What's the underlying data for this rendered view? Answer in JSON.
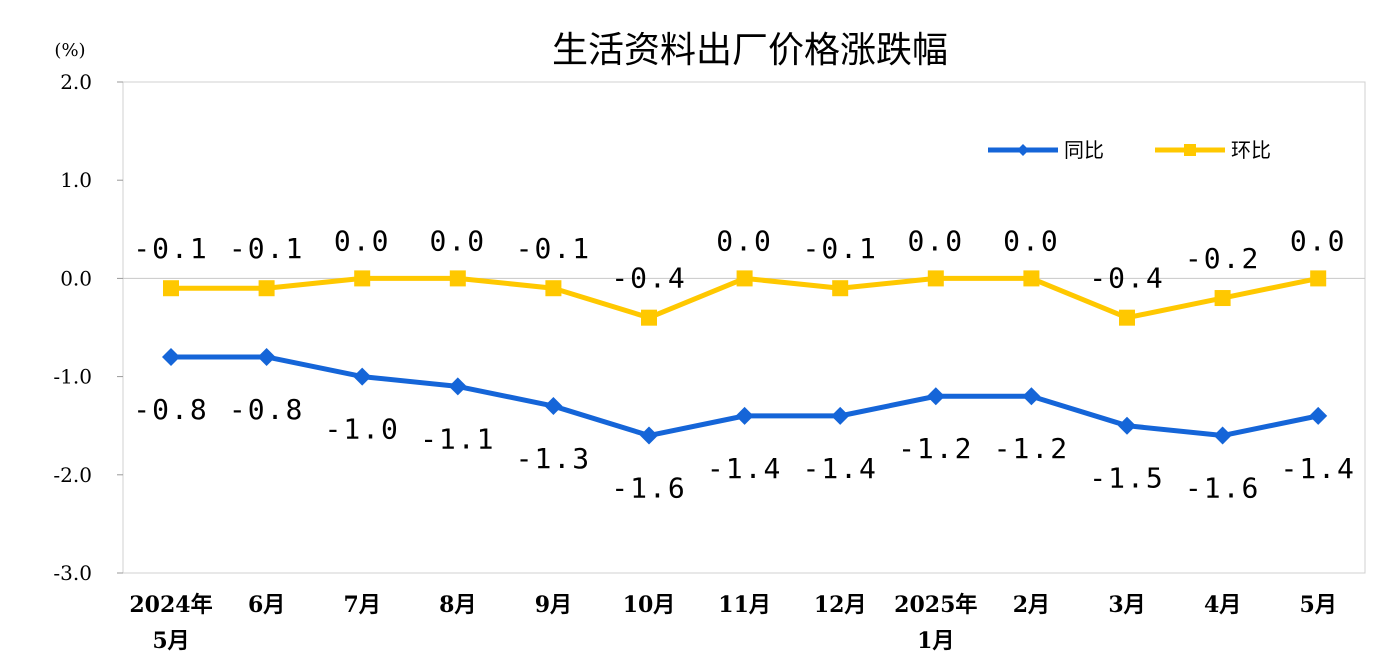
{
  "chart_data": {
    "type": "line",
    "title": "生活资料出厂价格涨跌幅",
    "unit_label": "(%)",
    "xlabel": "",
    "ylabel": "",
    "ylim": [
      -3.0,
      2.0
    ],
    "yticks": [
      "2.0",
      "1.0",
      "0.0",
      "-1.0",
      "-2.0",
      "-3.0"
    ],
    "ytick_values": [
      2.0,
      1.0,
      0.0,
      -1.0,
      -2.0,
      -3.0
    ],
    "categories": [
      [
        "2024年",
        "5月"
      ],
      [
        "6月"
      ],
      [
        "7月"
      ],
      [
        "8月"
      ],
      [
        "9月"
      ],
      [
        "10月"
      ],
      [
        "11月"
      ],
      [
        "12月"
      ],
      [
        "2025年",
        "1月"
      ],
      [
        "2月"
      ],
      [
        "3月"
      ],
      [
        "4月"
      ],
      [
        "5月"
      ]
    ],
    "legend_position": "top-right",
    "grid": false,
    "series": [
      {
        "name": "同比",
        "color": "#1565D8",
        "marker": "diamond",
        "values": [
          -0.8,
          -0.8,
          -1.0,
          -1.1,
          -1.3,
          -1.6,
          -1.4,
          -1.4,
          -1.2,
          -1.2,
          -1.5,
          -1.6,
          -1.4
        ],
        "labels": [
          "-0.8",
          "-0.8",
          "-1.0",
          "-1.1",
          "-1.3",
          "-1.6",
          "-1.4",
          "-1.4",
          "-1.2",
          "-1.2",
          "-1.5",
          "-1.6",
          "-1.4"
        ]
      },
      {
        "name": "环比",
        "color": "#FFC800",
        "marker": "square",
        "values": [
          -0.1,
          -0.1,
          0.0,
          0.0,
          -0.1,
          -0.4,
          0.0,
          -0.1,
          0.0,
          0.0,
          -0.4,
          -0.2,
          0.0
        ],
        "labels": [
          "-0.1",
          "-0.1",
          "0.0",
          "0.0",
          "-0.1",
          "-0.4",
          "0.0",
          "-0.1",
          "0.0",
          "0.0",
          "-0.4",
          "-0.2",
          "0.0"
        ]
      }
    ]
  }
}
